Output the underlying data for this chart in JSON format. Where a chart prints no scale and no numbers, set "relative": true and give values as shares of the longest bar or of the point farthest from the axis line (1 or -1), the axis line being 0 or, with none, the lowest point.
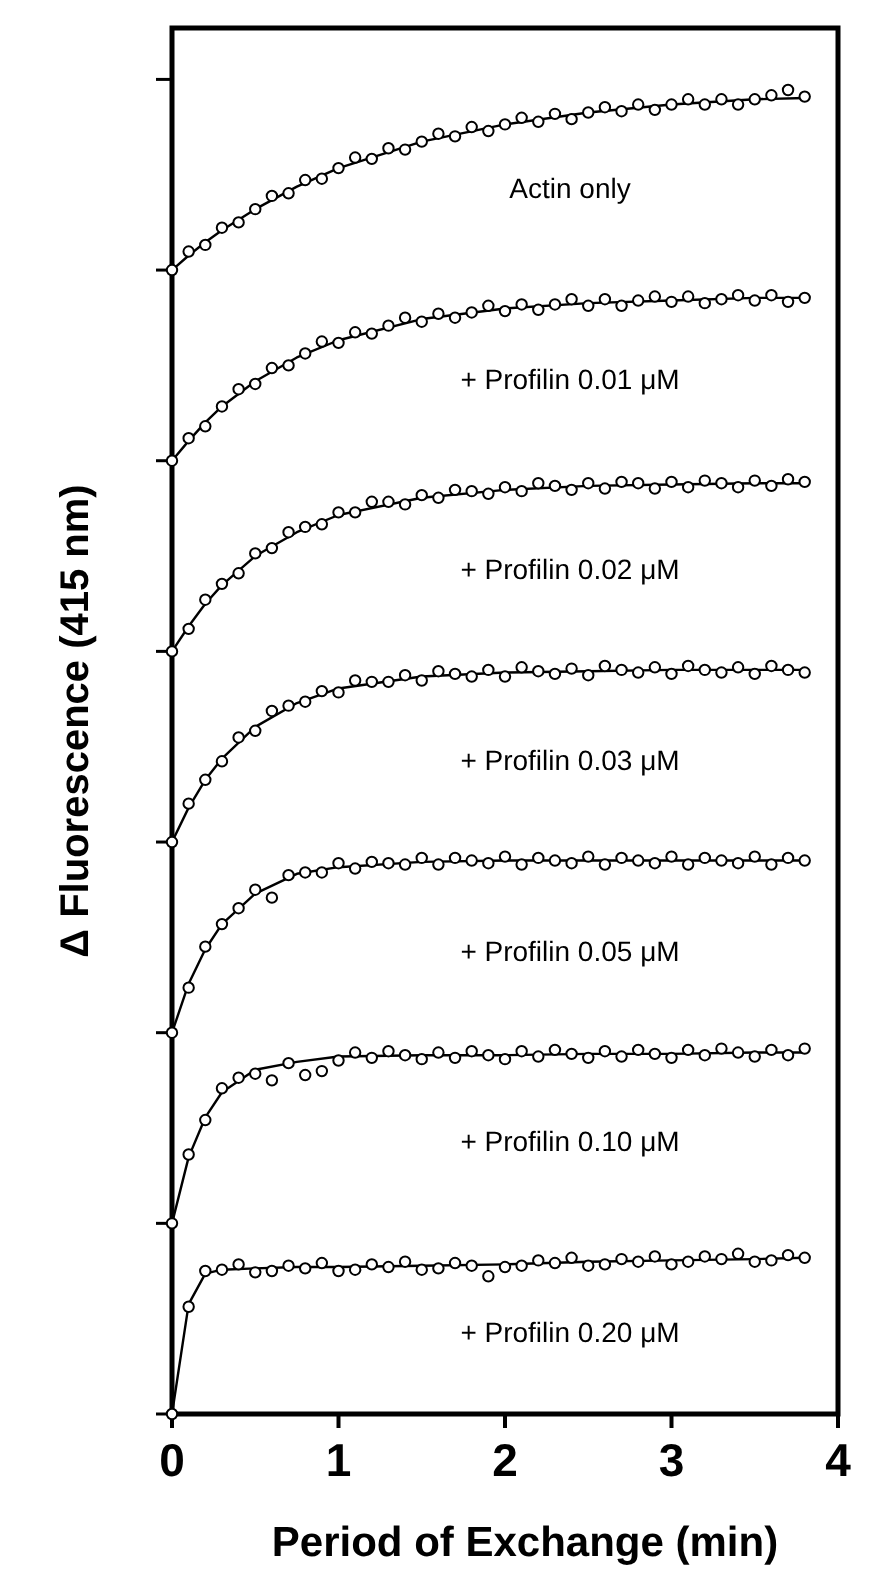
{
  "chart_data": {
    "type": "scatter",
    "relative": true,
    "marker": "circle",
    "xlabel": "Period of Exchange (min)",
    "ylabel": "Δ Fluorescence (415 nm)",
    "xlim": [
      0,
      4
    ],
    "xticks": [
      0,
      1,
      2,
      3,
      4
    ],
    "x": [
      0,
      0.1,
      0.2,
      0.3,
      0.4,
      0.5,
      0.6,
      0.7,
      0.8,
      0.9,
      1.0,
      1.1,
      1.2,
      1.3,
      1.4,
      1.5,
      1.6,
      1.7,
      1.8,
      1.9,
      2.0,
      2.1,
      2.2,
      2.3,
      2.4,
      2.5,
      2.6,
      2.7,
      2.8,
      2.9,
      3.0,
      3.1,
      3.2,
      3.3,
      3.4,
      3.5,
      3.6,
      3.7,
      3.8
    ],
    "series": [
      {
        "name": "Actin only",
        "color": "#000000",
        "values": [
          0.864,
          0.878,
          0.883,
          0.896,
          0.9,
          0.91,
          0.92,
          0.922,
          0.932,
          0.933,
          0.941,
          0.949,
          0.948,
          0.956,
          0.955,
          0.961,
          0.967,
          0.965,
          0.972,
          0.969,
          0.974,
          0.979,
          0.976,
          0.982,
          0.978,
          0.983,
          0.987,
          0.984,
          0.989,
          0.985,
          0.989,
          0.993,
          0.989,
          0.993,
          0.989,
          0.993,
          0.996,
          1.0,
          0.995
        ]
      },
      {
        "name": "+ Profilin 0.01 μM",
        "color": "#000000",
        "values": [
          0.72,
          0.737,
          0.746,
          0.761,
          0.774,
          0.778,
          0.79,
          0.792,
          0.801,
          0.81,
          0.809,
          0.817,
          0.816,
          0.822,
          0.828,
          0.825,
          0.831,
          0.828,
          0.832,
          0.837,
          0.833,
          0.838,
          0.834,
          0.838,
          0.842,
          0.837,
          0.842,
          0.837,
          0.841,
          0.844,
          0.84,
          0.844,
          0.839,
          0.842,
          0.845,
          0.841,
          0.845,
          0.84,
          0.843
        ]
      },
      {
        "name": "+ Profilin 0.02 μM",
        "color": "#000000",
        "values": [
          0.576,
          0.593,
          0.615,
          0.627,
          0.635,
          0.65,
          0.654,
          0.666,
          0.67,
          0.672,
          0.681,
          0.681,
          0.689,
          0.689,
          0.687,
          0.694,
          0.692,
          0.698,
          0.697,
          0.695,
          0.7,
          0.697,
          0.703,
          0.701,
          0.698,
          0.703,
          0.699,
          0.704,
          0.703,
          0.699,
          0.704,
          0.7,
          0.705,
          0.703,
          0.7,
          0.705,
          0.701,
          0.706,
          0.704
        ]
      },
      {
        "name": "+ Profilin 0.03 μM",
        "color": "#000000",
        "values": [
          0.432,
          0.461,
          0.479,
          0.493,
          0.511,
          0.516,
          0.531,
          0.535,
          0.538,
          0.546,
          0.545,
          0.554,
          0.553,
          0.553,
          0.558,
          0.554,
          0.561,
          0.559,
          0.557,
          0.562,
          0.557,
          0.564,
          0.561,
          0.559,
          0.563,
          0.558,
          0.565,
          0.562,
          0.56,
          0.564,
          0.559,
          0.565,
          0.562,
          0.56,
          0.564,
          0.559,
          0.565,
          0.562,
          0.56
        ]
      },
      {
        "name": "+ Profilin 0.05 μM",
        "color": "#000000",
        "values": [
          0.288,
          0.322,
          0.353,
          0.37,
          0.382,
          0.396,
          0.39,
          0.407,
          0.409,
          0.409,
          0.416,
          0.412,
          0.417,
          0.416,
          0.415,
          0.42,
          0.415,
          0.42,
          0.418,
          0.416,
          0.421,
          0.415,
          0.42,
          0.418,
          0.416,
          0.421,
          0.415,
          0.42,
          0.418,
          0.416,
          0.421,
          0.415,
          0.42,
          0.418,
          0.416,
          0.421,
          0.415,
          0.42,
          0.418
        ]
      },
      {
        "name": "+ Profilin 0.10 μM",
        "color": "#000000",
        "values": [
          0.144,
          0.196,
          0.222,
          0.246,
          0.254,
          0.257,
          0.252,
          0.265,
          0.256,
          0.259,
          0.267,
          0.273,
          0.269,
          0.274,
          0.271,
          0.268,
          0.273,
          0.269,
          0.274,
          0.271,
          0.268,
          0.274,
          0.27,
          0.275,
          0.272,
          0.269,
          0.274,
          0.27,
          0.275,
          0.272,
          0.269,
          0.275,
          0.271,
          0.276,
          0.273,
          0.27,
          0.275,
          0.271,
          0.276
        ]
      },
      {
        "name": "+ Profilin 0.20 μM",
        "color": "#000000",
        "values": [
          0,
          0.081,
          0.108,
          0.109,
          0.113,
          0.107,
          0.108,
          0.112,
          0.11,
          0.114,
          0.108,
          0.109,
          0.113,
          0.111,
          0.115,
          0.109,
          0.11,
          0.114,
          0.112,
          0.104,
          0.111,
          0.112,
          0.116,
          0.114,
          0.118,
          0.112,
          0.113,
          0.117,
          0.115,
          0.119,
          0.113,
          0.115,
          0.119,
          0.117,
          0.121,
          0.115,
          0.116,
          0.12,
          0.118
        ]
      },
      {
        "type": "line",
        "marker": "none",
        "color": "#000000",
        "x": [
          0,
          0.1,
          0.2,
          0.3,
          0.5,
          0.75,
          1,
          1.5,
          2,
          2.5,
          3,
          3.5,
          3.8
        ],
        "values": [
          0.864,
          0.875,
          0.885,
          0.894,
          0.91,
          0.927,
          0.941,
          0.961,
          0.974,
          0.983,
          0.989,
          0.993,
          0.994
        ]
      },
      {
        "type": "line",
        "marker": "none",
        "color": "#000000",
        "x": [
          0,
          0.1,
          0.2,
          0.3,
          0.5,
          0.75,
          1,
          1.5,
          2,
          2.5,
          3,
          3.5,
          3.8
        ],
        "values": [
          0.72,
          0.735,
          0.749,
          0.761,
          0.78,
          0.798,
          0.811,
          0.827,
          0.835,
          0.839,
          0.841,
          0.843,
          0.843
        ]
      },
      {
        "type": "line",
        "marker": "none",
        "color": "#000000",
        "x": [
          0,
          0.1,
          0.2,
          0.3,
          0.5,
          0.75,
          1,
          1.5,
          2,
          2.5,
          3,
          3.5,
          3.8
        ],
        "values": [
          0.576,
          0.595,
          0.612,
          0.626,
          0.648,
          0.666,
          0.679,
          0.692,
          0.698,
          0.701,
          0.702,
          0.703,
          0.703
        ]
      },
      {
        "type": "line",
        "marker": "none",
        "color": "#000000",
        "x": [
          0,
          0.1,
          0.2,
          0.3,
          0.5,
          0.75,
          1,
          1.5,
          2,
          2.5,
          3,
          3.5,
          3.8
        ],
        "values": [
          0.432,
          0.458,
          0.479,
          0.495,
          0.519,
          0.537,
          0.548,
          0.557,
          0.56,
          0.561,
          0.562,
          0.562,
          0.562
        ]
      },
      {
        "type": "line",
        "marker": "none",
        "color": "#000000",
        "x": [
          0,
          0.1,
          0.2,
          0.3,
          0.5,
          0.75,
          1,
          1.5,
          2,
          2.5,
          3,
          3.5,
          3.8
        ],
        "values": [
          0.288,
          0.325,
          0.351,
          0.37,
          0.393,
          0.408,
          0.413,
          0.417,
          0.418,
          0.418,
          0.418,
          0.418,
          0.418
        ]
      },
      {
        "type": "line",
        "marker": "none",
        "color": "#000000",
        "x": [
          0,
          0.1,
          0.2,
          0.3,
          0.5,
          0.75,
          1,
          1.5,
          2,
          2.5,
          3,
          3.5,
          3.8
        ],
        "values": [
          0.144,
          0.194,
          0.224,
          0.243,
          0.26,
          0.266,
          0.27,
          0.271,
          0.271,
          0.272,
          0.272,
          0.273,
          0.273
        ]
      },
      {
        "type": "line",
        "marker": "none",
        "color": "#000000",
        "x": [
          0,
          0.1,
          0.2,
          0.3,
          0.5,
          0.75,
          1,
          1.5,
          2,
          2.5,
          3,
          3.5,
          3.8
        ],
        "values": [
          0,
          0.083,
          0.106,
          0.109,
          0.11,
          0.111,
          0.111,
          0.112,
          0.113,
          0.115,
          0.116,
          0.117,
          0.118
        ]
      }
    ]
  }
}
